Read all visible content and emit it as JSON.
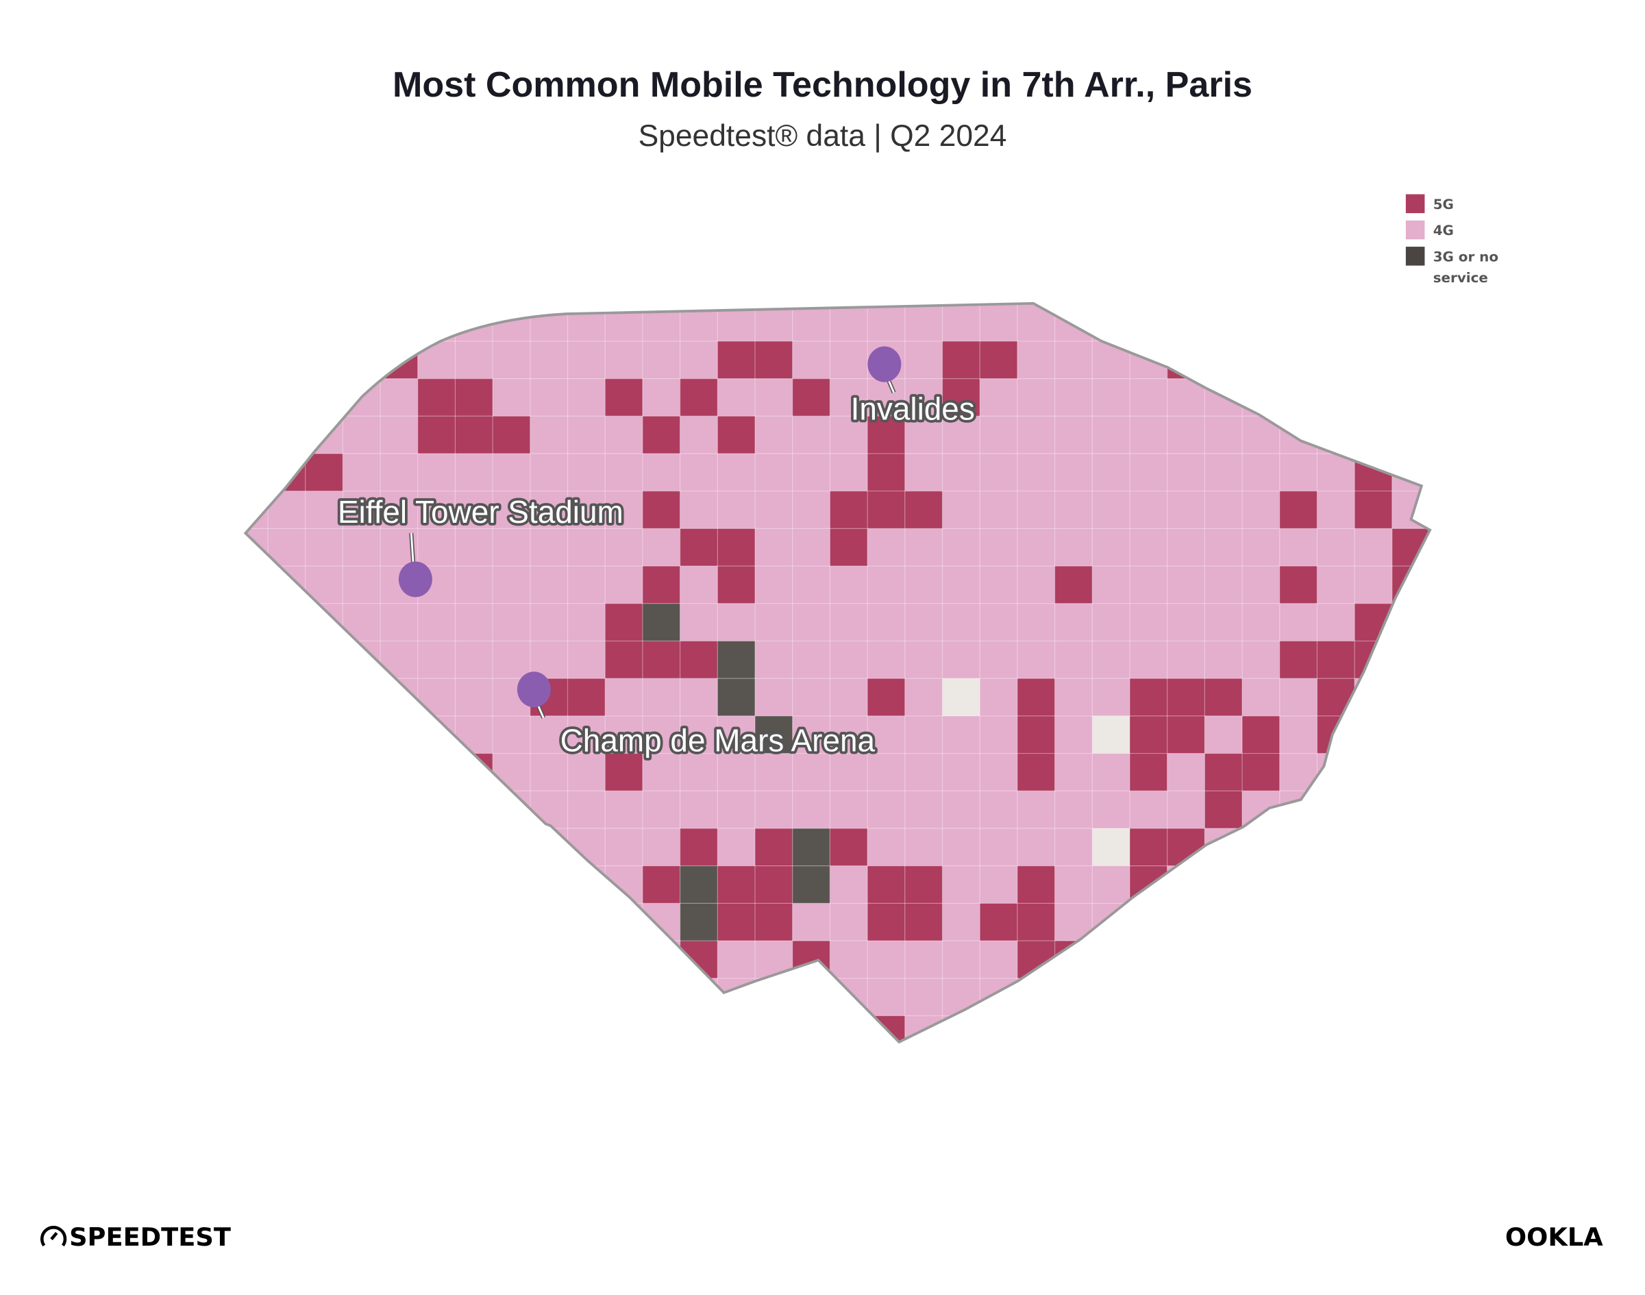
{
  "header": {
    "title": "Most Common Mobile Technology in 7th Arr., Paris",
    "subtitle": "Speedtest® data | Q2 2024"
  },
  "legend": [
    {
      "label": "5G",
      "color": "#ad3c5e"
    },
    {
      "label": "4G",
      "color": "#e4aecd"
    },
    {
      "label": "3G or no",
      "label2": "service",
      "color": "#4a4543"
    }
  ],
  "colors": {
    "5G": "#ad3c5e",
    "4G": "#e4aecd",
    "3G": "#58544f",
    "no_data": "#ece8e3",
    "outline": "#999999",
    "pin": "#8b5db0"
  },
  "map": {
    "default_tech": "4G",
    "grid": [
      {
        "row": 1,
        "5G": [
          3,
          12,
          13,
          18,
          19,
          24
        ]
      },
      {
        "row": 2,
        "5G": [
          4,
          5,
          9,
          11,
          14,
          18
        ]
      },
      {
        "row": 3,
        "5G": [
          4,
          5,
          6,
          10,
          12,
          16
        ]
      },
      {
        "row": 4,
        "5G": [
          0,
          1,
          16,
          29
        ]
      },
      {
        "row": 5,
        "5G": [
          10,
          15,
          16,
          17,
          27,
          29
        ]
      },
      {
        "row": 6,
        "5G": [
          11,
          12,
          15,
          30
        ]
      },
      {
        "row": 7,
        "5G": [
          10,
          12,
          21,
          27,
          30
        ]
      },
      {
        "row": 8,
        "5G": [
          9,
          29
        ],
        "3G": [
          10
        ]
      },
      {
        "row": 9,
        "5G": [
          9,
          10,
          11,
          27,
          28,
          29
        ],
        "3G": [
          12
        ]
      },
      {
        "row": 10,
        "5G": [
          7,
          8,
          16,
          20,
          23,
          24,
          25,
          28
        ],
        "3G": [
          12
        ],
        "no_data": [
          18
        ]
      },
      {
        "row": 11,
        "5G": [
          20,
          23,
          24,
          26,
          28
        ],
        "3G": [
          13
        ],
        "no_data": [
          22
        ]
      },
      {
        "row": 12,
        "5G": [
          5,
          9,
          20,
          23,
          25,
          26
        ]
      },
      {
        "row": 13,
        "5G": [
          25
        ]
      },
      {
        "row": 14,
        "5G": [
          11,
          13,
          15,
          23,
          24
        ],
        "3G": [
          14
        ],
        "no_data": [
          22
        ]
      },
      {
        "row": 15,
        "5G": [
          10,
          12,
          13,
          16,
          17,
          20,
          23
        ],
        "3G": [
          11,
          14
        ]
      },
      {
        "row": 16,
        "5G": [
          12,
          13,
          16,
          17,
          19,
          20
        ],
        "3G": [
          11
        ]
      },
      {
        "row": 17,
        "5G": [
          11,
          14,
          20,
          21
        ]
      },
      {
        "row": 19,
        "5G": [
          16
        ]
      }
    ],
    "places": [
      {
        "name": "Invalides"
      },
      {
        "name": "Eiffel Tower Stadium"
      },
      {
        "name": "Champ de Mars Arena"
      }
    ]
  },
  "footer": {
    "left_logo": "SPEEDTEST",
    "right_logo": "OOKLA"
  }
}
